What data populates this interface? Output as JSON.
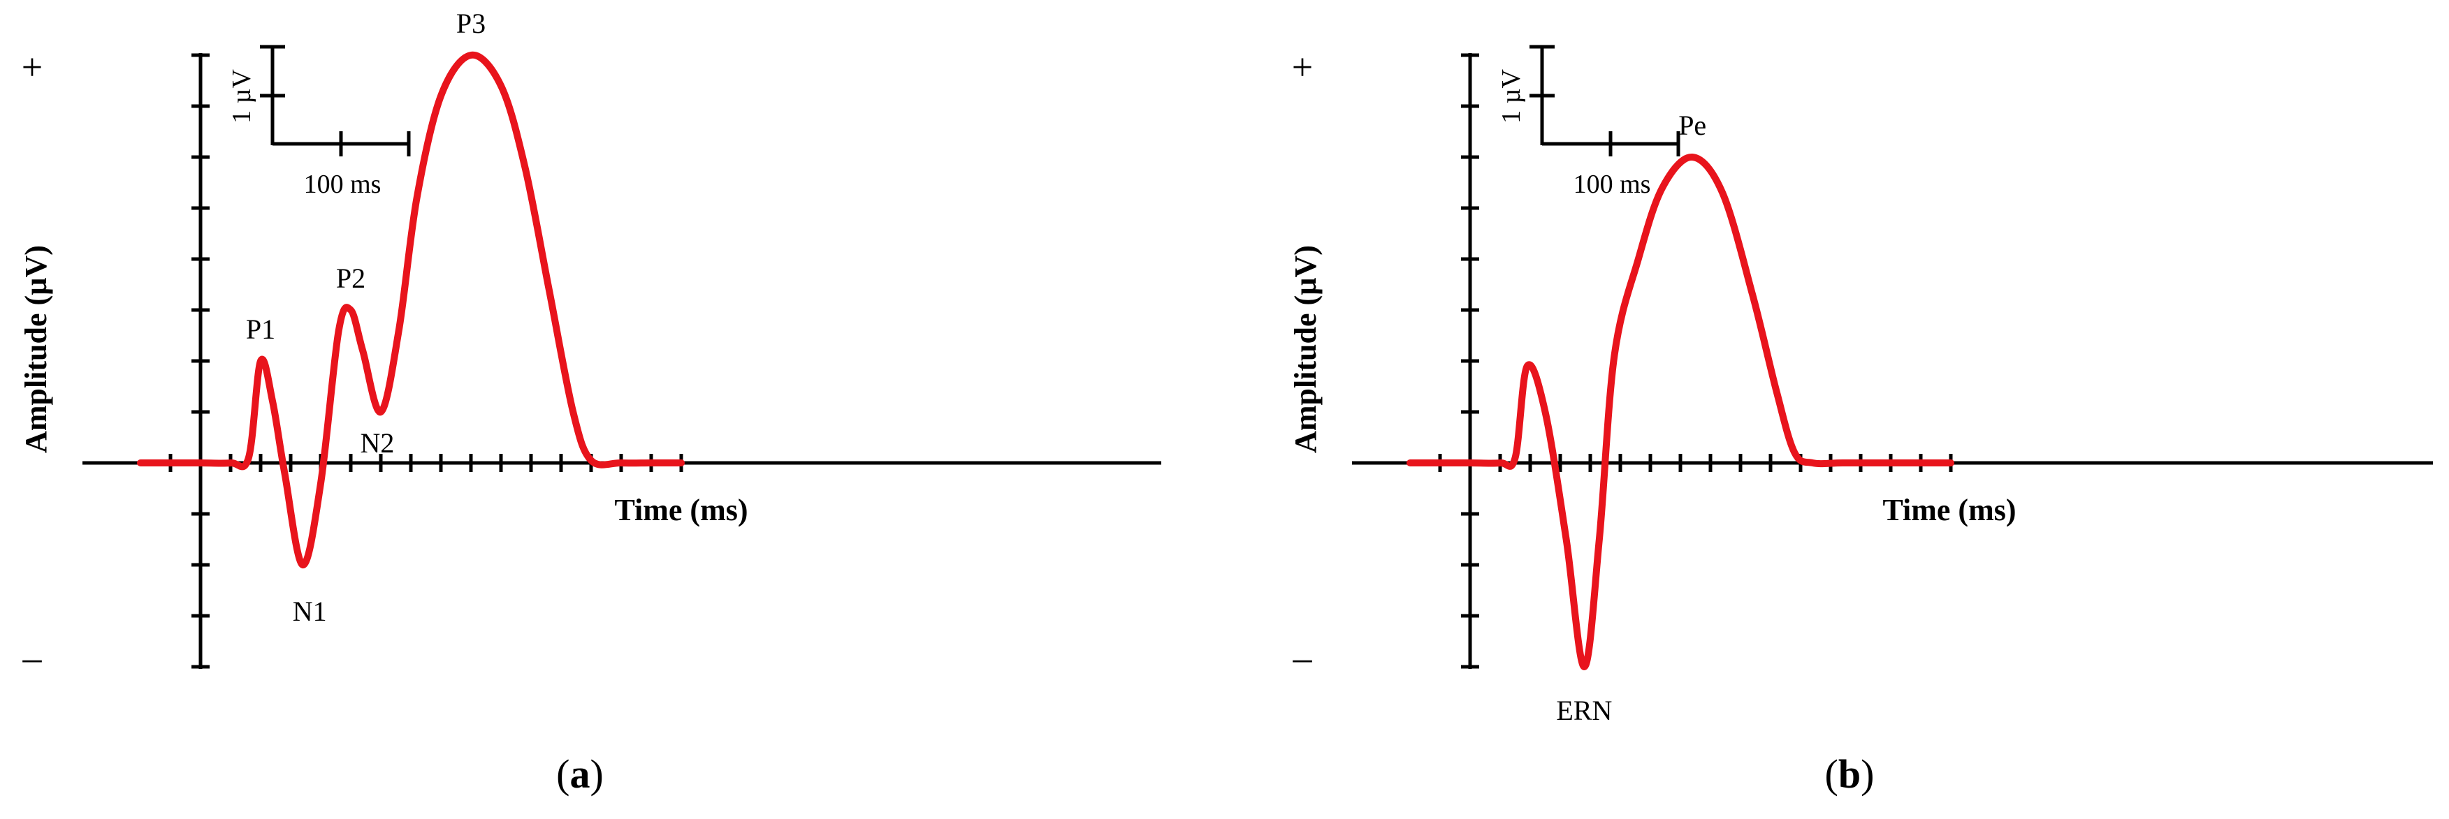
{
  "colors": {
    "curve": "#e8141c",
    "axis": "#000000",
    "background": "#ffffff"
  },
  "chart_data": [
    {
      "type": "line",
      "panel_label": "(a)",
      "panel_letter": "a",
      "xlabel": "Time (ms)",
      "ylabel": "Amplitude (µV)",
      "positive_sign": "+",
      "negative_sign": "–",
      "scale_bar": {
        "y_label": "1 µV",
        "x_label": "100 ms"
      },
      "peaks": [
        {
          "label": "P1",
          "x": 100,
          "y": 2
        },
        {
          "label": "N1",
          "x": 170,
          "y": -2
        },
        {
          "label": "P2",
          "x": 250,
          "y": 3
        },
        {
          "label": "N2",
          "x": 300,
          "y": 1
        },
        {
          "label": "P3",
          "x": 450,
          "y": 8
        }
      ],
      "series": [
        {
          "x": [
            -100,
            -50,
            0,
            50,
            80,
            100,
            120,
            140,
            170,
            200,
            230,
            250,
            270,
            300,
            330,
            360,
            400,
            450,
            500,
            540,
            580,
            620,
            650,
            700,
            750,
            800
          ],
          "y": [
            0,
            0,
            0,
            0,
            0.1,
            2,
            1.2,
            -0.2,
            -2,
            -0.4,
            2.6,
            3,
            2.2,
            1,
            2.6,
            5.2,
            7.2,
            8,
            7.4,
            5.8,
            3.4,
            1.0,
            0.05,
            0,
            0,
            0
          ]
        }
      ],
      "xlim": [
        -100,
        800
      ],
      "ylim": [
        -4,
        8
      ]
    },
    {
      "type": "line",
      "panel_label": "(b)",
      "panel_letter": "b",
      "xlabel": "Time (ms)",
      "ylabel": "Amplitude (µV)",
      "positive_sign": "+",
      "negative_sign": "–",
      "scale_bar": {
        "y_label": "1 µV",
        "x_label": "100 ms"
      },
      "peaks": [
        {
          "label": "ERN",
          "x": 190,
          "y": -4
        },
        {
          "label": "Pe",
          "x": 370,
          "y": 6
        }
      ],
      "series": [
        {
          "x": [
            -100,
            -50,
            0,
            50,
            75,
            95,
            125,
            160,
            190,
            215,
            240,
            280,
            320,
            370,
            420,
            470,
            510,
            540,
            570,
            620,
            700,
            800
          ],
          "y": [
            0,
            0,
            0,
            0,
            0.1,
            1.9,
            1.0,
            -1.5,
            -4,
            -1.5,
            2.1,
            4.0,
            5.4,
            6,
            5.3,
            3.3,
            1.4,
            0.2,
            0,
            0,
            0,
            0
          ]
        }
      ],
      "xlim": [
        -100,
        800
      ],
      "ylim": [
        -4,
        8
      ]
    }
  ]
}
